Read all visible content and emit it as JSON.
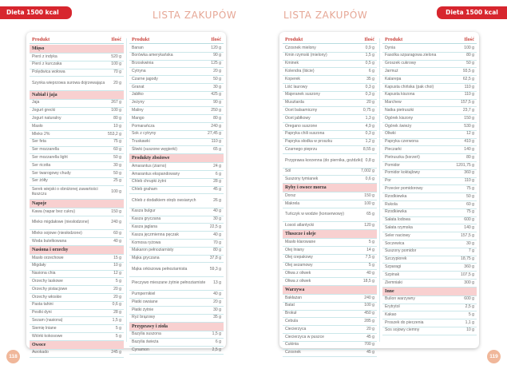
{
  "left_badge": "Dieta 1500 kcal",
  "right_badge": "Dieta 1500 kcal",
  "left_title": "LISTA ZAKUPÓW",
  "right_title": "LISTA ZAKUPÓW",
  "left_page_number": "118",
  "right_page_number": "119",
  "columns": [
    {
      "header": [
        "Produkt",
        "Ilość"
      ],
      "items": [
        {
          "t": "s",
          "name": "Mięso"
        },
        {
          "name": "Pierś z indyka",
          "qty": "520 g"
        },
        {
          "name": "Pierś z kurczaka",
          "qty": "100 g"
        },
        {
          "name": "Polędwica wołowa",
          "qty": "70 g"
        },
        {
          "name": "Szynka wieprzowa surowa dojrzewająca",
          "qty": "20 g"
        },
        {
          "t": "s",
          "name": "Nabiał i jaja"
        },
        {
          "name": "Jaja",
          "qty": "267 g"
        },
        {
          "name": "Jogurt grecki",
          "qty": "100 g"
        },
        {
          "name": "Jogurt naturalny",
          "qty": "80 g"
        },
        {
          "name": "Masło",
          "qty": "10 g"
        },
        {
          "name": "Mleko 2%",
          "qty": "553,2 g"
        },
        {
          "name": "Ser feta",
          "qty": "75 g"
        },
        {
          "name": "Ser mozzarella",
          "qty": "60 g"
        },
        {
          "name": "Ser mozzarella light",
          "qty": "50 g"
        },
        {
          "name": "Ser ricotta",
          "qty": "30 g"
        },
        {
          "name": "Ser twarogowy chudy",
          "qty": "50 g"
        },
        {
          "name": "Ser żółty",
          "qty": "25 g"
        },
        {
          "name": "Serek wiejski o obniżonej zawartości tłuszczu",
          "qty": "100 g"
        },
        {
          "t": "s",
          "name": "Napoje"
        },
        {
          "name": "Kawa (napar bez cukru)",
          "qty": "150 g"
        },
        {
          "name": "Mleko migdałowe (niesłodzone)",
          "qty": "240 g"
        },
        {
          "name": "Mleko sojowe (niesłodzone)",
          "qty": "60 g"
        },
        {
          "name": "Woda butelkowana",
          "qty": "40 g"
        },
        {
          "t": "s",
          "name": "Nasiona i orzechy"
        },
        {
          "name": "Masło orzechowe",
          "qty": "15 g"
        },
        {
          "name": "Migdały",
          "qty": "10 g"
        },
        {
          "name": "Nasiona chia",
          "qty": "12 g"
        },
        {
          "name": "Orzechy laskowe",
          "qty": "5 g"
        },
        {
          "name": "Orzechy pistacjowe",
          "qty": "20 g"
        },
        {
          "name": "Orzechy włoskie",
          "qty": "20 g"
        },
        {
          "name": "Pasta tahini",
          "qty": "0,6 g"
        },
        {
          "name": "Pestki dyni",
          "qty": "28 g"
        },
        {
          "name": "Sezam (nasiona)",
          "qty": "1,5 g"
        },
        {
          "name": "Siemię lniane",
          "qty": "5 g"
        },
        {
          "name": "Wiórki kokosowe",
          "qty": "5 g"
        },
        {
          "t": "s",
          "name": "Owoce"
        },
        {
          "name": "Awokado",
          "qty": "245 g"
        }
      ]
    },
    {
      "header": [
        "Produkt",
        "Ilość"
      ],
      "items": [
        {
          "name": "Banan",
          "qty": "120 g"
        },
        {
          "name": "Borówka amerykańska",
          "qty": "90 g"
        },
        {
          "name": "Brzoskwinia",
          "qty": "125 g"
        },
        {
          "name": "Cytryna",
          "qty": "20 g"
        },
        {
          "name": "Czarne jagody",
          "qty": "50 g"
        },
        {
          "name": "Granat",
          "qty": "30 g"
        },
        {
          "name": "Jabłko",
          "qty": "425 g"
        },
        {
          "name": "Jeżyny",
          "qty": "90 g"
        },
        {
          "name": "Maliny",
          "qty": "250 g"
        },
        {
          "name": "Mango",
          "qty": "80 g"
        },
        {
          "name": "Pomarańcza",
          "qty": "240 g"
        },
        {
          "name": "Sok z cytryny",
          "qty": "27,45 g"
        },
        {
          "name": "Truskawki",
          "qty": "110 g"
        },
        {
          "name": "Śliwki (suszone węgierki)",
          "qty": "65 g"
        },
        {
          "t": "s",
          "name": "Produkty zbożowe"
        },
        {
          "name": "Amarantus (ziarno)",
          "qty": "24 g"
        },
        {
          "name": "Amarantus ekspandowany",
          "qty": "6 g"
        },
        {
          "name": "Chleb chrupki żytni",
          "qty": "28 g"
        },
        {
          "name": "Chleb graham",
          "qty": "45 g"
        },
        {
          "name": "Chleb z dodatkiem otręb owsianych",
          "qty": "26 g"
        },
        {
          "name": "Kasza bulgur",
          "qty": "40 g"
        },
        {
          "name": "Kasza gryczana",
          "qty": "30 g"
        },
        {
          "name": "Kasza jaglana",
          "qty": "22,5 g"
        },
        {
          "name": "Kasza jęczmienna pęczak",
          "qty": "40 g"
        },
        {
          "name": "Komosa ryżowa",
          "qty": "70 g"
        },
        {
          "name": "Makaron pełnoziarnisty",
          "qty": "80 g"
        },
        {
          "name": "Mąka gryczana",
          "qty": "37,8 g"
        },
        {
          "name": "Mąka orkiszowa pełnoziarnista",
          "qty": "59,3 g"
        },
        {
          "name": "Pieczywo mieszane żytnie pełnoziarniste",
          "qty": "13 g"
        },
        {
          "name": "Pumpernikiel",
          "qty": "40 g"
        },
        {
          "name": "Płatki owsiane",
          "qty": "20 g"
        },
        {
          "name": "Płatki żytnie",
          "qty": "30 g"
        },
        {
          "name": "Ryż brązowy",
          "qty": "35 g"
        },
        {
          "t": "s",
          "name": "Przyprawy i zioła"
        },
        {
          "name": "Bazylia suszona",
          "qty": "1,5 g"
        },
        {
          "name": "Bazylia świeża",
          "qty": "6 g"
        },
        {
          "name": "Cynamon",
          "qty": "2,5 g"
        }
      ]
    },
    {
      "header": [
        "Produkt",
        "Ilość"
      ],
      "items": [
        {
          "name": "Czosnek mielony",
          "qty": "0,9 g"
        },
        {
          "name": "Kmin rzymski (mielony)",
          "qty": "1,5 g"
        },
        {
          "name": "Kminek",
          "qty": "0,5 g"
        },
        {
          "name": "Kolendra (liście)",
          "qty": "6 g"
        },
        {
          "name": "Koperek",
          "qty": "35 g"
        },
        {
          "name": "Liść laurowy",
          "qty": "0,3 g"
        },
        {
          "name": "Majeranek suszony",
          "qty": "0,3 g"
        },
        {
          "name": "Musztarda",
          "qty": "20 g"
        },
        {
          "name": "Ocet balsamiczny",
          "qty": "0,75 g"
        },
        {
          "name": "Ocet jabłkowy",
          "qty": "1,3 g"
        },
        {
          "name": "Oregano suszone",
          "qty": "4,9 g"
        },
        {
          "name": "Papryka chili suszona",
          "qty": "0,3 g"
        },
        {
          "name": "Papryka słodka w proszku",
          "qty": "1,2 g"
        },
        {
          "name": "Czarnego pieprzu",
          "qty": "8,55 g"
        },
        {
          "name": "Przyprawa korzenna (do piernika, goździki)",
          "qty": "0,8 g"
        },
        {
          "name": "Sól",
          "qty": "7,002 g"
        },
        {
          "name": "Suszony tymianek",
          "qty": "0,6 g"
        },
        {
          "t": "s",
          "name": "Ryby i owoce morza"
        },
        {
          "name": "Dorsz",
          "qty": "150 g"
        },
        {
          "name": "Makrela",
          "qty": "100 g"
        },
        {
          "name": "Tuńczyk w wodzie (konserwowy)",
          "qty": "65 g"
        },
        {
          "name": "Łosoś atlantycki",
          "qty": "120 g"
        },
        {
          "t": "s",
          "name": "Tłuszcze i oleje"
        },
        {
          "name": "Masło klarowane",
          "qty": "5 g"
        },
        {
          "name": "Olej lniany",
          "qty": "14 g"
        },
        {
          "name": "Olej rzepakowy",
          "qty": "7,5 g"
        },
        {
          "name": "Olej sezamowy",
          "qty": "5 g"
        },
        {
          "name": "Oliwa z oliwek",
          "qty": "40 g"
        },
        {
          "name": "Oliwa z oliwek",
          "qty": "18,5 g"
        },
        {
          "t": "s",
          "name": "Warzywa"
        },
        {
          "name": "Bakłażan",
          "qty": "240 g"
        },
        {
          "name": "Batat",
          "qty": "100 g"
        },
        {
          "name": "Brokuł",
          "qty": "450 g"
        },
        {
          "name": "Cebula",
          "qty": "285 g"
        },
        {
          "name": "Ciecierzyca",
          "qty": "20 g"
        },
        {
          "name": "Ciecierzyca w puszce",
          "qty": "45 g"
        },
        {
          "name": "Cukinia",
          "qty": "700 g"
        },
        {
          "name": "Czosnek",
          "qty": "45 g"
        }
      ]
    },
    {
      "header": [
        "Produkt",
        "Ilość"
      ],
      "items": [
        {
          "name": "Dynia",
          "qty": "100 g"
        },
        {
          "name": "Fasolka szparagowa zielona",
          "qty": "80 g"
        },
        {
          "name": "Groszek cukrowy",
          "qty": "50 g"
        },
        {
          "name": "Jarmuż",
          "qty": "93,5 g"
        },
        {
          "name": "Kalarepa",
          "qty": "62,5 g"
        },
        {
          "name": "Kapusta chińska (pak choi)",
          "qty": "110 g"
        },
        {
          "name": "Kapusta kiszona",
          "qty": "110 g"
        },
        {
          "name": "Marchew",
          "qty": "157,5 g"
        },
        {
          "name": "Natka pietruszki",
          "qty": "23,7 g"
        },
        {
          "name": "Ogórek kiszony",
          "qty": "150 g"
        },
        {
          "name": "Ogórek świeży",
          "qty": "530 g"
        },
        {
          "name": "Oliwki",
          "qty": "12 g"
        },
        {
          "name": "Papryka czerwona",
          "qty": "410 g"
        },
        {
          "name": "Pieczarki",
          "qty": "140 g"
        },
        {
          "name": "Pietruszka (korzeń)",
          "qty": "80 g"
        },
        {
          "name": "Pomidor",
          "qty": "1201,75 g"
        },
        {
          "name": "Pomidor koktajlowy",
          "qty": "360 g"
        },
        {
          "name": "Por",
          "qty": "110 g"
        },
        {
          "name": "Przecier pomidorowy",
          "qty": "75 g"
        },
        {
          "name": "Rzodkiewka",
          "qty": "50 g"
        },
        {
          "name": "Rukola",
          "qty": "60 g"
        },
        {
          "name": "Rzodkiewka",
          "qty": "75 g"
        },
        {
          "name": "Sałata lodowa",
          "qty": "600 g"
        },
        {
          "name": "Sałata rzymska",
          "qty": "140 g"
        },
        {
          "name": "Seler naciowy",
          "qty": "157,5 g"
        },
        {
          "name": "Soczewica",
          "qty": "30 g"
        },
        {
          "name": "Suszony pomidor",
          "qty": "7 g"
        },
        {
          "name": "Szczypiorek",
          "qty": "18,75 g"
        },
        {
          "name": "Szparagi",
          "qty": "360 g"
        },
        {
          "name": "Szpinak",
          "qty": "107,5 g"
        },
        {
          "name": "Ziemniaki",
          "qty": "300 g"
        },
        {
          "t": "s",
          "name": "Inne"
        },
        {
          "name": "Bulion warzywny",
          "qty": "600 g"
        },
        {
          "name": "Erytrytol",
          "qty": "2,5 g"
        },
        {
          "name": "Kakao",
          "qty": "5 g"
        },
        {
          "name": "Proszek do pieczenia",
          "qty": "1,1 g"
        },
        {
          "name": "Sos sojowy ciemny",
          "qty": "10 g"
        }
      ]
    }
  ]
}
